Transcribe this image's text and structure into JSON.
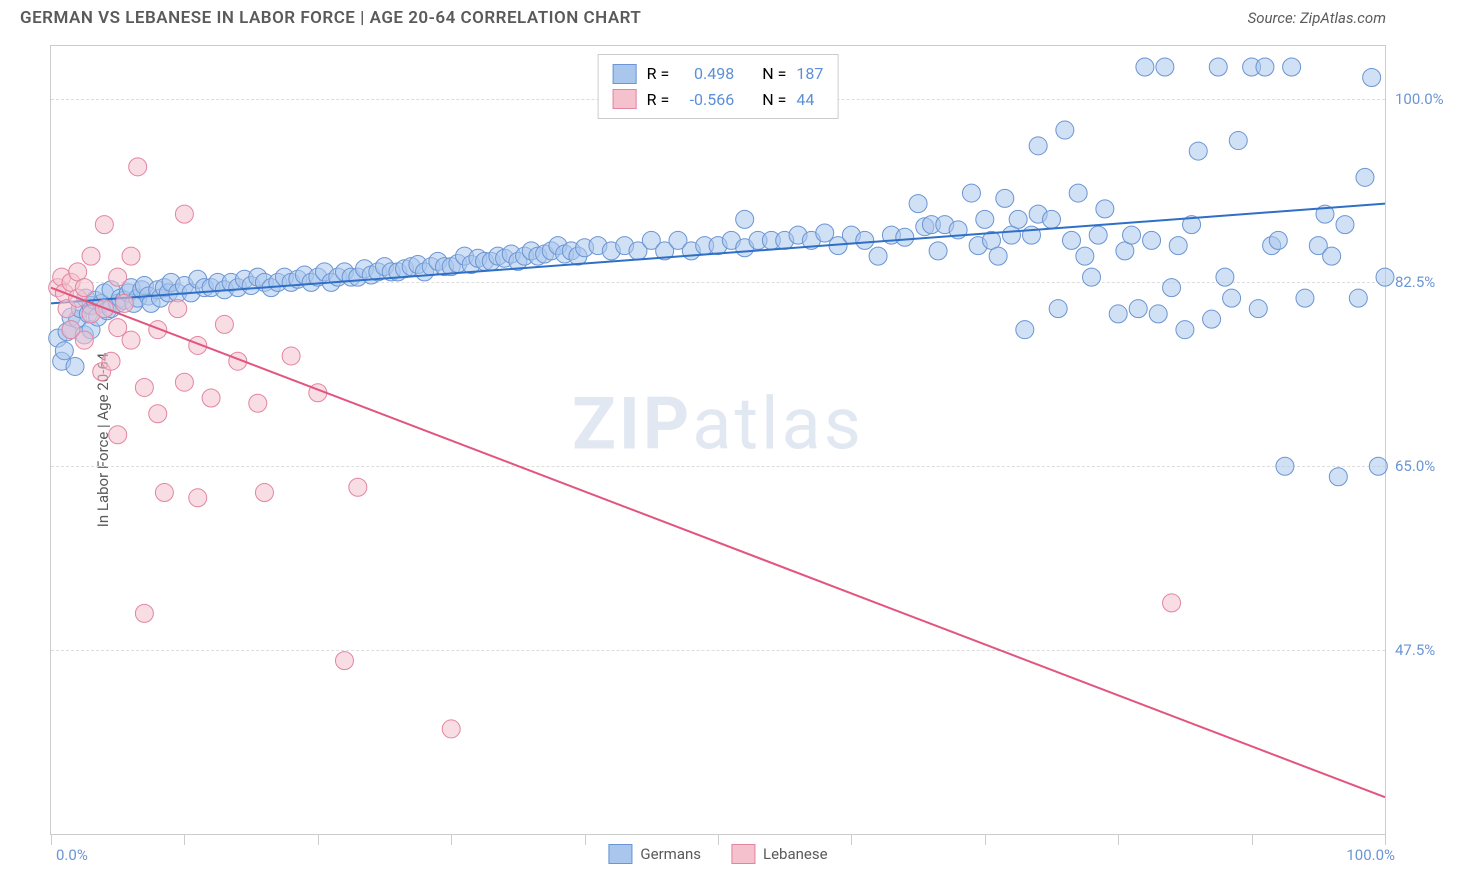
{
  "title": "GERMAN VS LEBANESE IN LABOR FORCE | AGE 20-64 CORRELATION CHART",
  "source": "Source: ZipAtlas.com",
  "y_axis_title": "In Labor Force | Age 20-64",
  "watermark": {
    "bold": "ZIP",
    "rest": "atlas"
  },
  "chart": {
    "type": "scatter",
    "background_color": "#ffffff",
    "border_color": "#cccccc",
    "grid_color": "#dddddd",
    "x_range": [
      0,
      100
    ],
    "y_range": [
      30,
      105
    ],
    "x_labels": {
      "start": "0.0%",
      "end": "100.0%"
    },
    "y_ticks": [
      {
        "value": 47.5,
        "label": "47.5%"
      },
      {
        "value": 65.0,
        "label": "65.0%"
      },
      {
        "value": 82.5,
        "label": "82.5%"
      },
      {
        "value": 100.0,
        "label": "100.0%"
      }
    ],
    "x_tick_positions": [
      0,
      10,
      20,
      30,
      40,
      50,
      60,
      70,
      80,
      90,
      100
    ],
    "tick_label_color": "#6b95d4",
    "marker_radius": 9,
    "marker_opacity": 0.55,
    "line_width": 2,
    "series": [
      {
        "name": "Germans",
        "fill_color": "#a9c6ec",
        "stroke_color": "#6b95d4",
        "line_color": "#2f6fc5",
        "R": "0.498",
        "N": "187",
        "trend": {
          "x1": 0,
          "y1": 80.5,
          "x2": 100,
          "y2": 90.0
        },
        "points": [
          [
            0.5,
            77.2
          ],
          [
            0.8,
            75.0
          ],
          [
            1.0,
            76.0
          ],
          [
            1.2,
            77.8
          ],
          [
            1.5,
            78.0
          ],
          [
            1.5,
            79.2
          ],
          [
            1.8,
            74.5
          ],
          [
            2.0,
            79.0
          ],
          [
            2.2,
            80.0
          ],
          [
            2.5,
            77.5
          ],
          [
            2.6,
            81.0
          ],
          [
            2.8,
            79.5
          ],
          [
            3.0,
            80.3
          ],
          [
            3.0,
            78.0
          ],
          [
            3.3,
            80.8
          ],
          [
            3.5,
            79.2
          ],
          [
            3.8,
            80.5
          ],
          [
            4.0,
            81.5
          ],
          [
            4.2,
            79.8
          ],
          [
            4.5,
            81.8
          ],
          [
            4.5,
            80.0
          ],
          [
            5.0,
            80.5
          ],
          [
            5.2,
            81.0
          ],
          [
            5.5,
            80.8
          ],
          [
            5.8,
            81.5
          ],
          [
            6.0,
            82.0
          ],
          [
            6.2,
            80.5
          ],
          [
            6.5,
            81.0
          ],
          [
            6.8,
            81.8
          ],
          [
            7.0,
            82.2
          ],
          [
            7.3,
            81.2
          ],
          [
            7.5,
            80.5
          ],
          [
            8.0,
            81.8
          ],
          [
            8.2,
            81.0
          ],
          [
            8.5,
            82.0
          ],
          [
            8.8,
            81.5
          ],
          [
            9.0,
            82.5
          ],
          [
            9.5,
            81.5
          ],
          [
            10.0,
            82.2
          ],
          [
            10.5,
            81.5
          ],
          [
            11.0,
            82.8
          ],
          [
            11.5,
            82.0
          ],
          [
            12.0,
            82.0
          ],
          [
            12.5,
            82.5
          ],
          [
            13.0,
            81.8
          ],
          [
            13.5,
            82.5
          ],
          [
            14.0,
            82.0
          ],
          [
            14.5,
            82.8
          ],
          [
            15.0,
            82.2
          ],
          [
            15.5,
            83.0
          ],
          [
            16.0,
            82.5
          ],
          [
            16.5,
            82.0
          ],
          [
            17.0,
            82.5
          ],
          [
            17.5,
            83.0
          ],
          [
            18.0,
            82.5
          ],
          [
            18.5,
            82.8
          ],
          [
            19.0,
            83.2
          ],
          [
            19.5,
            82.5
          ],
          [
            20.0,
            83.0
          ],
          [
            20.5,
            83.5
          ],
          [
            21.0,
            82.5
          ],
          [
            21.5,
            83.0
          ],
          [
            22.0,
            83.5
          ],
          [
            22.5,
            83.0
          ],
          [
            23.0,
            83.0
          ],
          [
            23.5,
            83.8
          ],
          [
            24.0,
            83.2
          ],
          [
            24.5,
            83.5
          ],
          [
            25.0,
            84.0
          ],
          [
            25.5,
            83.5
          ],
          [
            26.0,
            83.5
          ],
          [
            26.5,
            83.8
          ],
          [
            27.0,
            84.0
          ],
          [
            27.5,
            84.2
          ],
          [
            28.0,
            83.5
          ],
          [
            28.5,
            84.0
          ],
          [
            29.0,
            84.5
          ],
          [
            29.5,
            84.0
          ],
          [
            30.0,
            84.0
          ],
          [
            30.5,
            84.3
          ],
          [
            31.0,
            85.0
          ],
          [
            31.5,
            84.2
          ],
          [
            32.0,
            84.8
          ],
          [
            32.5,
            84.5
          ],
          [
            33.0,
            84.5
          ],
          [
            33.5,
            85.0
          ],
          [
            34.0,
            84.8
          ],
          [
            34.5,
            85.2
          ],
          [
            35.0,
            84.5
          ],
          [
            35.5,
            85.0
          ],
          [
            36.0,
            85.5
          ],
          [
            36.5,
            85.0
          ],
          [
            37.0,
            85.2
          ],
          [
            37.5,
            85.5
          ],
          [
            38.0,
            86.0
          ],
          [
            38.5,
            85.2
          ],
          [
            39.0,
            85.5
          ],
          [
            39.5,
            85.0
          ],
          [
            40.0,
            85.8
          ],
          [
            41.0,
            86.0
          ],
          [
            42.0,
            85.5
          ],
          [
            43.0,
            86.0
          ],
          [
            44.0,
            85.5
          ],
          [
            45.0,
            86.5
          ],
          [
            46.0,
            85.5
          ],
          [
            47.0,
            86.5
          ],
          [
            48.0,
            85.5
          ],
          [
            49.0,
            86.0
          ],
          [
            50.0,
            86.0
          ],
          [
            51.0,
            86.5
          ],
          [
            52.0,
            85.8
          ],
          [
            52.0,
            88.5
          ],
          [
            53.0,
            86.5
          ],
          [
            54.0,
            86.5
          ],
          [
            55.0,
            86.5
          ],
          [
            56.0,
            87.0
          ],
          [
            57.0,
            86.5
          ],
          [
            58.0,
            87.2
          ],
          [
            59.0,
            86.0
          ],
          [
            60.0,
            87.0
          ],
          [
            61.0,
            86.5
          ],
          [
            62.0,
            85.0
          ],
          [
            63.0,
            87.0
          ],
          [
            64.0,
            86.8
          ],
          [
            65.0,
            90.0
          ],
          [
            65.5,
            87.8
          ],
          [
            66.0,
            88.0
          ],
          [
            66.5,
            85.5
          ],
          [
            67.0,
            88.0
          ],
          [
            68.0,
            87.5
          ],
          [
            69.0,
            91.0
          ],
          [
            69.5,
            86.0
          ],
          [
            70.0,
            88.5
          ],
          [
            70.5,
            86.5
          ],
          [
            71.0,
            85.0
          ],
          [
            71.5,
            90.5
          ],
          [
            72.0,
            87.0
          ],
          [
            72.5,
            88.5
          ],
          [
            73.0,
            78.0
          ],
          [
            73.5,
            87.0
          ],
          [
            74.0,
            95.5
          ],
          [
            74.0,
            89.0
          ],
          [
            75.0,
            88.5
          ],
          [
            75.5,
            80.0
          ],
          [
            76.0,
            97.0
          ],
          [
            76.5,
            86.5
          ],
          [
            77.0,
            91.0
          ],
          [
            77.5,
            85.0
          ],
          [
            78.0,
            83.0
          ],
          [
            78.5,
            87.0
          ],
          [
            79.0,
            89.5
          ],
          [
            80.0,
            79.5
          ],
          [
            80.5,
            85.5
          ],
          [
            81.0,
            87.0
          ],
          [
            81.5,
            80.0
          ],
          [
            82.0,
            103.0
          ],
          [
            82.5,
            86.5
          ],
          [
            83.0,
            79.5
          ],
          [
            83.5,
            103.0
          ],
          [
            84.0,
            82.0
          ],
          [
            84.5,
            86.0
          ],
          [
            85.0,
            78.0
          ],
          [
            85.5,
            88.0
          ],
          [
            86.0,
            95.0
          ],
          [
            87.0,
            79.0
          ],
          [
            87.5,
            103.0
          ],
          [
            88.0,
            83.0
          ],
          [
            88.5,
            81.0
          ],
          [
            89.0,
            96.0
          ],
          [
            90.0,
            103.0
          ],
          [
            90.5,
            80.0
          ],
          [
            91.0,
            103.0
          ],
          [
            91.5,
            86.0
          ],
          [
            92.0,
            86.5
          ],
          [
            92.5,
            65.0
          ],
          [
            93.0,
            103.0
          ],
          [
            94.0,
            81.0
          ],
          [
            95.0,
            86.0
          ],
          [
            95.5,
            89.0
          ],
          [
            96.0,
            85.0
          ],
          [
            96.5,
            64.0
          ],
          [
            97.0,
            88.0
          ],
          [
            98.0,
            81.0
          ],
          [
            98.5,
            92.5
          ],
          [
            99.0,
            102.0
          ],
          [
            99.5,
            65.0
          ],
          [
            100.0,
            83.0
          ]
        ]
      },
      {
        "name": "Lebanese",
        "fill_color": "#f4c1cd",
        "stroke_color": "#e285a0",
        "line_color": "#e1557e",
        "R": "-0.566",
        "N": "44",
        "trend": {
          "x1": 0,
          "y1": 82.0,
          "x2": 100,
          "y2": 33.5
        },
        "points": [
          [
            0.5,
            82.0
          ],
          [
            0.8,
            83.0
          ],
          [
            1.0,
            81.5
          ],
          [
            1.2,
            80.0
          ],
          [
            1.5,
            82.5
          ],
          [
            1.5,
            78.0
          ],
          [
            2.0,
            81.0
          ],
          [
            2.0,
            83.5
          ],
          [
            2.5,
            77.0
          ],
          [
            2.5,
            82.0
          ],
          [
            3.0,
            79.5
          ],
          [
            3.0,
            85.0
          ],
          [
            3.8,
            74.0
          ],
          [
            4.0,
            80.0
          ],
          [
            4.0,
            88.0
          ],
          [
            4.5,
            75.0
          ],
          [
            5.0,
            83.0
          ],
          [
            5.0,
            78.2
          ],
          [
            5.0,
            68.0
          ],
          [
            5.5,
            80.5
          ],
          [
            6.0,
            85.0
          ],
          [
            6.0,
            77.0
          ],
          [
            6.5,
            93.5
          ],
          [
            7.0,
            72.5
          ],
          [
            7.0,
            51.0
          ],
          [
            8.0,
            78.0
          ],
          [
            8.0,
            70.0
          ],
          [
            8.5,
            62.5
          ],
          [
            9.5,
            80.0
          ],
          [
            10.0,
            73.0
          ],
          [
            10.0,
            89.0
          ],
          [
            11.0,
            76.5
          ],
          [
            11.0,
            62.0
          ],
          [
            12.0,
            71.5
          ],
          [
            13.0,
            78.5
          ],
          [
            14.0,
            75.0
          ],
          [
            15.5,
            71.0
          ],
          [
            16.0,
            62.5
          ],
          [
            18.0,
            75.5
          ],
          [
            20.0,
            72.0
          ],
          [
            22.0,
            46.5
          ],
          [
            23.0,
            63.0
          ],
          [
            30.0,
            40.0
          ],
          [
            84.0,
            52.0
          ]
        ]
      }
    ]
  },
  "legend_top": {
    "stat_color": "#5b8fd8",
    "rows": [
      {
        "swatch_fill": "#a9c6ec",
        "swatch_border": "#6b95d4",
        "r_label": "R = ",
        "r_val": "0.498",
        "n_label": "N = ",
        "n_val": "187"
      },
      {
        "swatch_fill": "#f4c1cd",
        "swatch_border": "#e285a0",
        "r_label": "R = ",
        "r_val": "-0.566",
        "n_label": "N = ",
        "n_val": "44"
      }
    ]
  },
  "legend_bottom": [
    {
      "label": "Germans",
      "fill": "#a9c6ec",
      "border": "#6b95d4"
    },
    {
      "label": "Lebanese",
      "fill": "#f4c1cd",
      "border": "#e285a0"
    }
  ]
}
